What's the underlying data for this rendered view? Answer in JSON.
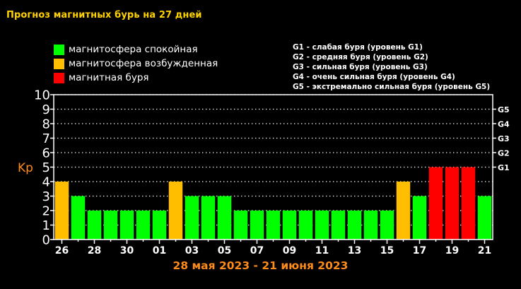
{
  "title": "Прогноз магнитных бурь на 27 дней",
  "legend": [
    {
      "label": "магнитосфера спокойная",
      "color": "#00ff00"
    },
    {
      "label": "магнитосфера возбужденная",
      "color": "#ffbf00"
    },
    {
      "label": "магнитная буря",
      "color": "#ff0000"
    }
  ],
  "g_legend": [
    "G1 - слабая буря (уровень G1)",
    "G2 - средняя буря (уровень G2)",
    "G3 - сильная буря (уровень G3)",
    "G4 - очень сильная буря (уровень G4)",
    "G5 - экстремально сильная буря (уровень G5)"
  ],
  "date_range": "28 мая 2023 - 21 июня 2023",
  "colors": {
    "quiet": "#00ff00",
    "active": "#ffbf00",
    "storm": "#ff0000",
    "background": "#000000",
    "title": "#ffd200",
    "kp_label": "#ff8c1a"
  },
  "chart_data": {
    "type": "bar",
    "ylabel": "Kp",
    "ylim": [
      0,
      10
    ],
    "yticks": [
      0,
      1,
      2,
      3,
      4,
      5,
      6,
      7,
      8,
      9,
      10
    ],
    "right_ticks": [
      {
        "label": "G1",
        "kp": 5
      },
      {
        "label": "G2",
        "kp": 6
      },
      {
        "label": "G3",
        "kp": 7
      },
      {
        "label": "G4",
        "kp": 8
      },
      {
        "label": "G5",
        "kp": 9
      }
    ],
    "xtick_labels": [
      "26",
      "28",
      "30",
      "01",
      "03",
      "05",
      "07",
      "09",
      "11",
      "13",
      "15",
      "17",
      "19",
      "21"
    ],
    "grid": true,
    "values": [
      4,
      3,
      2,
      2,
      2,
      2,
      2,
      4,
      3,
      3,
      3,
      2,
      2,
      2,
      2,
      2,
      2,
      2,
      2,
      2,
      2,
      4,
      3,
      5,
      5,
      5,
      3
    ],
    "levels": [
      "active",
      "quiet",
      "quiet",
      "quiet",
      "quiet",
      "quiet",
      "quiet",
      "active",
      "quiet",
      "quiet",
      "quiet",
      "quiet",
      "quiet",
      "quiet",
      "quiet",
      "quiet",
      "quiet",
      "quiet",
      "quiet",
      "quiet",
      "quiet",
      "active",
      "quiet",
      "storm",
      "storm",
      "storm",
      "quiet"
    ]
  }
}
